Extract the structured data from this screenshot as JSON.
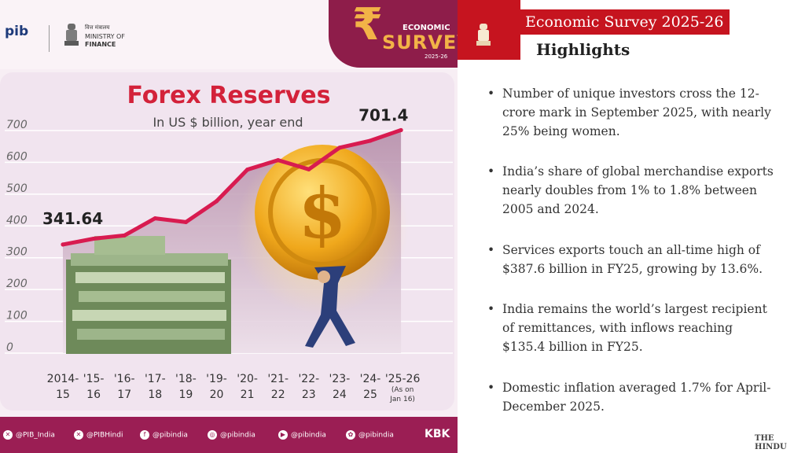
{
  "left_panel": {
    "pib_logo": "pib",
    "ministry_hindi": "वित्त मंत्रालय",
    "ministry_line1": "MINISTRY OF",
    "ministry_line2": "FINANCE",
    "badge_economic": "ECONOMIC",
    "badge_survey": "SURVEY",
    "badge_years": "2025-26",
    "social_handles": [
      "@PIB_India",
      "@PIBHindi",
      "@pibindia",
      "@pibindia",
      "@pibindia",
      "@pibindia"
    ],
    "credit": "KBK"
  },
  "chart_data": {
    "type": "area",
    "title": "Forex Reserves",
    "subtitle": "In US $ billion, year end",
    "categories": [
      "2014-15",
      "'15-16",
      "'16-17",
      "'17-18",
      "'18-19",
      "'19-20",
      "'20-21",
      "'21-22",
      "'22-23",
      "'23-24",
      "'24-25",
      "'25-26 (As on Jan 16)"
    ],
    "tick_label_lines": [
      [
        "2014-",
        "15"
      ],
      [
        "'15-",
        "16"
      ],
      [
        "'16-",
        "17"
      ],
      [
        "'17-",
        "18"
      ],
      [
        "'18-",
        "19"
      ],
      [
        "'19-",
        "20"
      ],
      [
        "'20-",
        "21"
      ],
      [
        "'21-",
        "22"
      ],
      [
        "'22-",
        "23"
      ],
      [
        "'23-",
        "24"
      ],
      [
        "'24-",
        "25"
      ],
      [
        "'25-26",
        "(As on",
        "Jan 16)"
      ]
    ],
    "values": [
      341.64,
      360,
      370,
      424,
      412,
      478,
      577,
      607,
      578,
      646,
      668,
      701.4
    ],
    "data_labels": [
      {
        "index": 0,
        "text": "341.64"
      },
      {
        "index": 11,
        "text": "701.4"
      }
    ],
    "yticks": [
      "0",
      "100",
      "200",
      "300",
      "400",
      "500",
      "600",
      "700"
    ],
    "ylim": [
      0,
      700
    ],
    "grid": true,
    "line_color": "#d81b50",
    "fill_color": "#c9a7b8"
  },
  "right_panel": {
    "header": "Economic Survey 2025-26",
    "subheader": "Highlights",
    "bullet_symbol": "•",
    "highlights": [
      [
        "Number of unique investors cross the 12-",
        "crore mark in September 2025, with nearly",
        "25% being women."
      ],
      [
        "India’s share of global merchandise exports",
        "nearly doubles from 1% to 1.8% between",
        "2005 and 2024."
      ],
      [
        "Services exports touch an all-time high of",
        "$387.6 billion in FY25, growing by 13.6%."
      ],
      [
        "India remains the world’s largest recipient",
        "of remittances, with inflows reaching",
        "$135.4 billion in FY25."
      ],
      [
        "Domestic inflation averaged 1.7% for April-",
        "December 2025."
      ]
    ],
    "source_logo": "THE HINDU"
  }
}
